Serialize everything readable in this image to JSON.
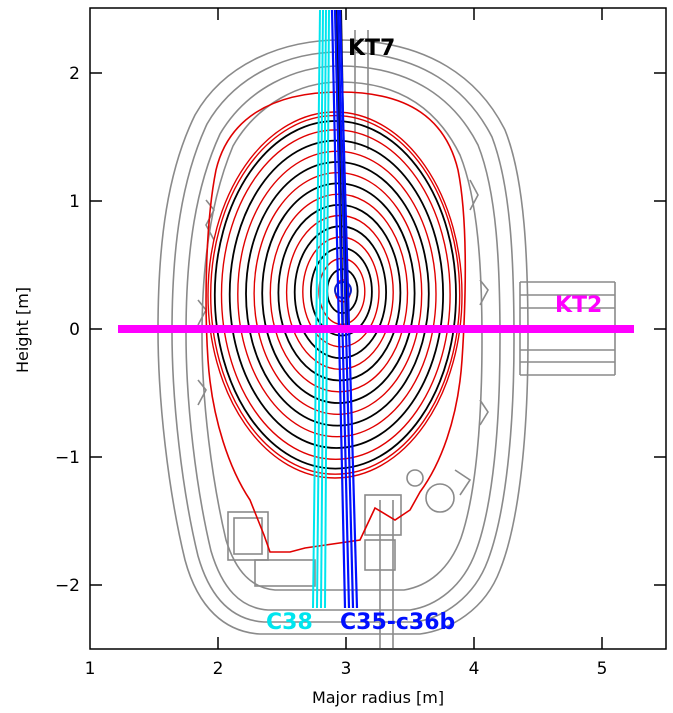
{
  "chart_data": {
    "type": "diagram",
    "xlabel": "Major radius [m]",
    "ylabel": "Height [m]",
    "xlim": [
      1.0,
      5.5
    ],
    "ylim": [
      -2.5,
      2.5
    ],
    "xticks": [
      "1",
      "2",
      "3",
      "4",
      "5"
    ],
    "yticks": [
      "2",
      "1",
      "0",
      "−1",
      "−2"
    ],
    "magnetic_axis": {
      "R": 2.98,
      "Z": 0.3
    },
    "flux_surfaces": {
      "black_levels": [
        0.12,
        0.24,
        0.36,
        0.48,
        0.6,
        0.72,
        0.84,
        0.95
      ],
      "red_levels": [
        0.06,
        0.18,
        0.3,
        0.42,
        0.54,
        0.66,
        0.78,
        0.9,
        0.98,
        1.0
      ]
    },
    "lines_of_sight": [
      {
        "name": "KT7",
        "color": "#000000"
      },
      {
        "name": "KT2",
        "color": "#ff00ff"
      },
      {
        "name": "C38",
        "color": "#00e5ee"
      },
      {
        "name": "C35-c36b",
        "color": "#0010ff"
      }
    ]
  }
}
